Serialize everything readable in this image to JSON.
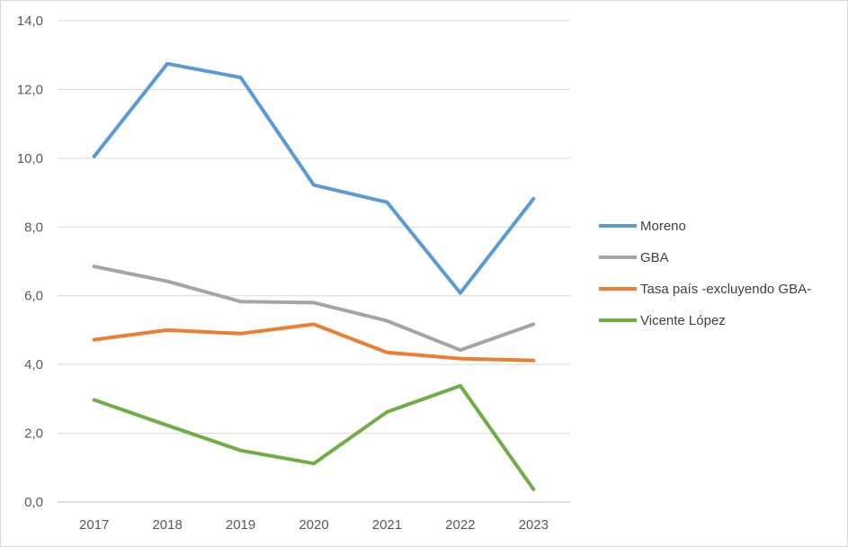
{
  "chart_data": {
    "type": "line",
    "title": "",
    "xlabel": "",
    "ylabel": "",
    "categories": [
      "2017",
      "2018",
      "2019",
      "2020",
      "2021",
      "2022",
      "2023"
    ],
    "ylim": [
      0,
      14
    ],
    "yticks": [
      "0,0",
      "2,0",
      "4,0",
      "6,0",
      "8,0",
      "10,0",
      "12,0",
      "14,0"
    ],
    "grid": "horizontal",
    "legend_position": "right",
    "series": [
      {
        "name": "Moreno",
        "color": "#5b9bd5",
        "values": [
          10.05,
          12.75,
          12.35,
          9.22,
          8.72,
          6.08,
          8.82
        ]
      },
      {
        "name": "GBA",
        "color": "#a5a5a5",
        "values": [
          6.85,
          6.42,
          5.83,
          5.8,
          5.27,
          4.42,
          5.17
        ]
      },
      {
        "name": "Tasa país -excluyendo GBA-",
        "color": "#ed7d31",
        "values": [
          4.72,
          5.0,
          4.9,
          5.17,
          4.35,
          4.17,
          4.12
        ]
      },
      {
        "name": "Vicente López",
        "color": "#70ad47",
        "values": [
          2.97,
          2.23,
          1.5,
          1.12,
          2.62,
          3.38,
          0.37
        ]
      }
    ]
  }
}
